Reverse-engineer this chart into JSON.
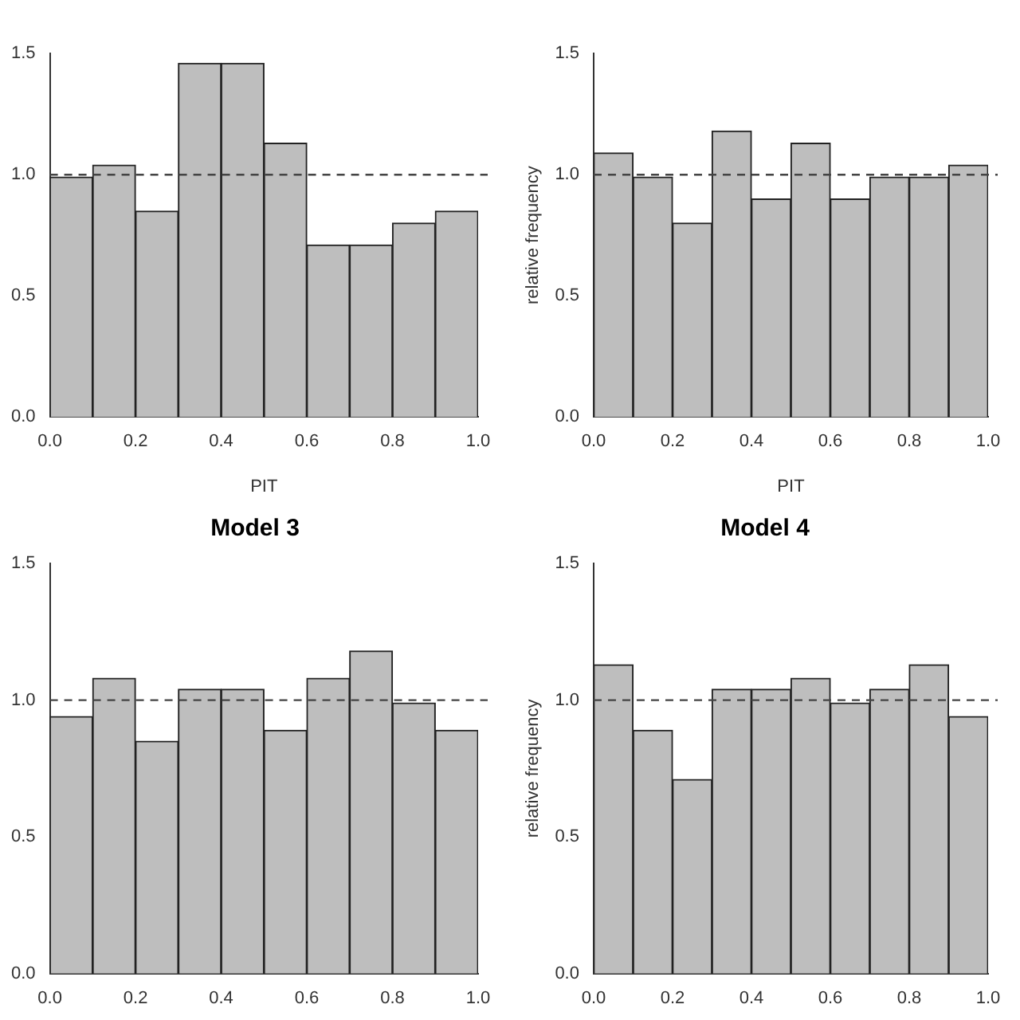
{
  "chart_data": [
    {
      "type": "histogram",
      "xlabel": "PIT",
      "bins": [
        0,
        0.1,
        0.2,
        0.3,
        0.4,
        0.5,
        0.6,
        0.7,
        0.8,
        0.9,
        1.0
      ],
      "values": [
        0.99,
        1.04,
        0.85,
        1.46,
        1.46,
        1.13,
        0.71,
        0.71,
        0.8,
        0.85
      ],
      "color": "#bebebe",
      "xlim": [
        0,
        1
      ],
      "xticks": [
        {
          "value": 0,
          "label": "0.0"
        },
        {
          "value": 0.2,
          "label": "0.2"
        },
        {
          "value": 0.4,
          "label": "0.4"
        },
        {
          "value": 0.6,
          "label": "0.6"
        },
        {
          "value": 0.8,
          "label": "0.8"
        },
        {
          "value": 1,
          "label": "1.0"
        }
      ],
      "ylim": [
        0,
        1.5
      ],
      "yticks": [
        {
          "value": 0,
          "label": "0.0"
        },
        {
          "value": 0.5,
          "label": "0.5"
        },
        {
          "value": 1,
          "label": "1.0"
        },
        {
          "value": 1.5,
          "label": "1.5"
        }
      ],
      "ref_lines": [
        {
          "axis": "y",
          "value": 1,
          "line_style": "dashed"
        }
      ]
    },
    {
      "type": "histogram",
      "xlabel": "PIT",
      "ylabel": "relative frequency",
      "bins": [
        0,
        0.1,
        0.2,
        0.3,
        0.4,
        0.5,
        0.6,
        0.7,
        0.8,
        0.9,
        1.0
      ],
      "values": [
        1.09,
        0.99,
        0.8,
        1.18,
        0.9,
        1.13,
        0.9,
        0.99,
        0.99,
        1.04
      ],
      "color": "#bebebe",
      "xlim": [
        0,
        1
      ],
      "xticks": [
        {
          "value": 0,
          "label": "0.0"
        },
        {
          "value": 0.2,
          "label": "0.2"
        },
        {
          "value": 0.4,
          "label": "0.4"
        },
        {
          "value": 0.6,
          "label": "0.6"
        },
        {
          "value": 0.8,
          "label": "0.8"
        },
        {
          "value": 1,
          "label": "1.0"
        }
      ],
      "ylim": [
        0,
        1.5
      ],
      "yticks": [
        {
          "value": 0,
          "label": "0.0"
        },
        {
          "value": 0.5,
          "label": "0.5"
        },
        {
          "value": 1,
          "label": "1.0"
        },
        {
          "value": 1.5,
          "label": "1.5"
        }
      ],
      "ref_lines": [
        {
          "axis": "y",
          "value": 1,
          "line_style": "dashed"
        }
      ]
    },
    {
      "type": "histogram",
      "title": "Model 3",
      "bins": [
        0,
        0.1,
        0.2,
        0.3,
        0.4,
        0.5,
        0.6,
        0.7,
        0.8,
        0.9,
        1.0
      ],
      "values": [
        0.94,
        1.08,
        0.85,
        1.04,
        1.04,
        0.89,
        1.08,
        1.18,
        0.99,
        0.89
      ],
      "color": "#bebebe",
      "xlim": [
        0,
        1
      ],
      "xticks": [
        {
          "value": 0,
          "label": "0.0"
        },
        {
          "value": 0.2,
          "label": "0.2"
        },
        {
          "value": 0.4,
          "label": "0.4"
        },
        {
          "value": 0.6,
          "label": "0.6"
        },
        {
          "value": 0.8,
          "label": "0.8"
        },
        {
          "value": 1,
          "label": "1.0"
        }
      ],
      "ylim": [
        0,
        1.5
      ],
      "yticks": [
        {
          "value": 0,
          "label": "0.0"
        },
        {
          "value": 0.5,
          "label": "0.5"
        },
        {
          "value": 1,
          "label": "1.0"
        },
        {
          "value": 1.5,
          "label": "1.5"
        }
      ],
      "ref_lines": [
        {
          "axis": "y",
          "value": 1,
          "line_style": "dashed"
        }
      ]
    },
    {
      "type": "histogram",
      "title": "Model 4",
      "ylabel": "relative frequency",
      "bins": [
        0,
        0.1,
        0.2,
        0.3,
        0.4,
        0.5,
        0.6,
        0.7,
        0.8,
        0.9,
        1.0
      ],
      "values": [
        1.13,
        0.89,
        0.71,
        1.04,
        1.04,
        1.08,
        0.99,
        1.04,
        1.13,
        0.94
      ],
      "color": "#bebebe",
      "xlim": [
        0,
        1
      ],
      "xticks": [
        {
          "value": 0,
          "label": "0.0"
        },
        {
          "value": 0.2,
          "label": "0.2"
        },
        {
          "value": 0.4,
          "label": "0.4"
        },
        {
          "value": 0.6,
          "label": "0.6"
        },
        {
          "value": 0.8,
          "label": "0.8"
        },
        {
          "value": 1,
          "label": "1.0"
        }
      ],
      "ylim": [
        0,
        1.5
      ],
      "yticks": [
        {
          "value": 0,
          "label": "0.0"
        },
        {
          "value": 0.5,
          "label": "0.5"
        },
        {
          "value": 1,
          "label": "1.0"
        },
        {
          "value": 1.5,
          "label": "1.5"
        }
      ],
      "ref_lines": [
        {
          "axis": "y",
          "value": 1,
          "line_style": "dashed"
        }
      ]
    }
  ]
}
